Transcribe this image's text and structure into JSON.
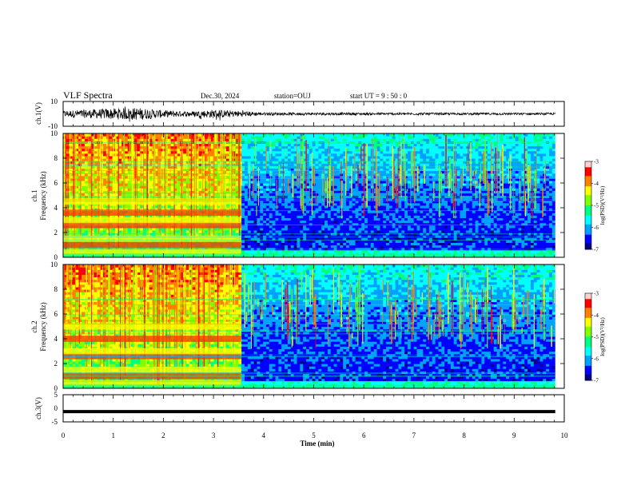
{
  "header": {
    "title": "VLF Spectra",
    "date": "Dec.30, 2024",
    "station": "station=OUJ",
    "start": "start  UT =   9 : 50 : 0"
  },
  "colors": {
    "colormap": [
      "#000080",
      "#0000ff",
      "#00a0ff",
      "#00ffff",
      "#00ff80",
      "#80ff00",
      "#ffff00",
      "#ff8000",
      "#ff0000",
      "#ffd0d0"
    ],
    "background": "#ffffff",
    "trace": "#000000"
  },
  "chart_data": [
    {
      "type": "line",
      "panel": "ch1",
      "ylabel": "ch.1(V)",
      "ylim": [
        -10,
        10
      ],
      "yticks": [
        "10",
        "-10"
      ],
      "xlim": [
        0,
        10
      ],
      "description_values": {
        "amplitude_envelope": [
          [
            0,
            2.5
          ],
          [
            1,
            4.5
          ],
          [
            1.5,
            5.0
          ],
          [
            2.0,
            3.0
          ],
          [
            2.5,
            2.0
          ],
          [
            3.0,
            3.5
          ],
          [
            3.5,
            2.5
          ],
          [
            4.0,
            1.2
          ],
          [
            5.0,
            1.1
          ],
          [
            6.0,
            1.0
          ],
          [
            7.0,
            1.0
          ],
          [
            8.0,
            0.9
          ],
          [
            9.0,
            0.9
          ],
          [
            9.8,
            0.9
          ]
        ]
      }
    },
    {
      "type": "heatmap",
      "panel": "ch1",
      "ylabel": "ch.1\nFrequency  (kHz)",
      "ylim": [
        0,
        10
      ],
      "yticks": [
        "0",
        "2",
        "4",
        "6",
        "8",
        "10"
      ],
      "xlim": [
        0,
        10
      ],
      "colorbar": {
        "label": "log(PSD)(V²/Hz)",
        "range": [
          -7,
          -3
        ],
        "ticks": [
          "-3",
          "-4",
          "-5",
          "-6",
          "-7"
        ]
      },
      "bands_kHz": [
        0.4,
        1.0,
        1.5,
        2.6,
        3.0,
        3.6,
        4.5
      ],
      "segment_break_min": 3.55
    },
    {
      "type": "heatmap",
      "panel": "ch2",
      "ylabel": "ch.2\nFrequency  (kHz)",
      "ylim": [
        0,
        10
      ],
      "yticks": [
        "0",
        "2",
        "4",
        "6",
        "8",
        "10"
      ],
      "xlim": [
        0,
        10
      ],
      "colorbar": {
        "label": "log(PSD)(V²/Hz)",
        "range": [
          -7,
          -3
        ],
        "ticks": [
          "-3",
          "-4",
          "-5",
          "-6",
          "-7"
        ]
      },
      "bands_kHz": [
        0.4,
        1.0,
        1.5,
        2.6,
        3.0,
        4.0,
        5.0
      ],
      "segment_break_min": 3.55
    },
    {
      "type": "line",
      "panel": "ch3",
      "ylabel": "ch.3(V)",
      "ylim": [
        -5,
        5
      ],
      "yticks": [
        "5",
        "0",
        "-5"
      ],
      "xlim": [
        0,
        10
      ],
      "constant_value": -1.2
    }
  ],
  "xaxis": {
    "label": "Time  (min)",
    "ticks": [
      "0",
      "1",
      "2",
      "3",
      "4",
      "5",
      "6",
      "7",
      "8",
      "9",
      "10"
    ]
  }
}
